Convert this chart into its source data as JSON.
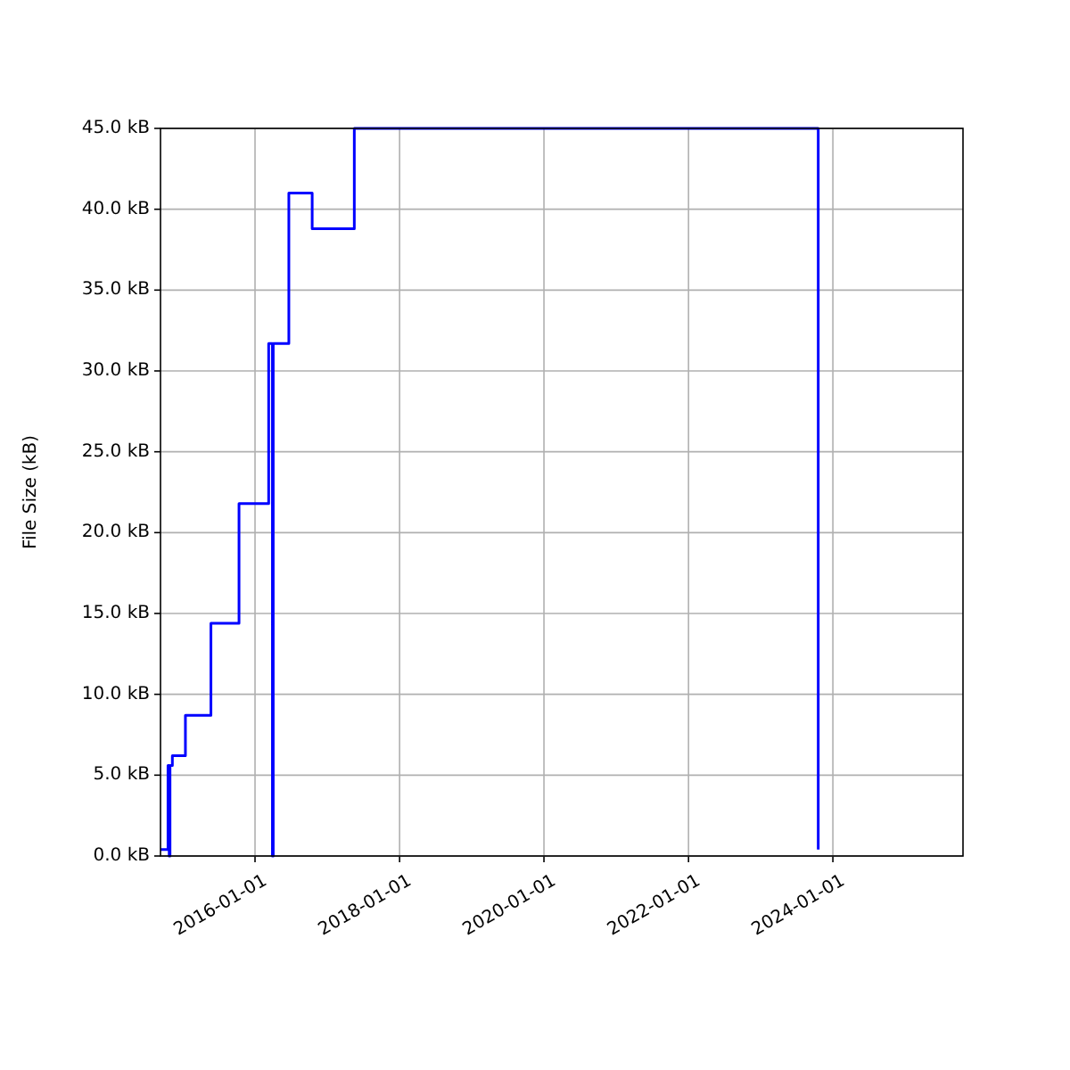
{
  "chart_data": {
    "type": "step",
    "ylabel": "File Size (kB)",
    "x": [
      "2014-09-10",
      "2014-10-18",
      "2014-10-24",
      "2014-10-28",
      "2014-11-09",
      "2015-01-14",
      "2015-05-23",
      "2015-10-12",
      "2016-03-10",
      "2016-03-29",
      "2016-04-02",
      "2016-06-20",
      "2016-10-16",
      "2017-05-17",
      "2023-10-19"
    ],
    "series": [
      {
        "color": "#0000ff",
        "values": [
          0.4,
          5.6,
          0,
          5.6,
          6.2,
          8.7,
          14.4,
          21.8,
          31.7,
          0,
          31.7,
          41.0,
          38.8,
          45,
          0.4
        ]
      }
    ],
    "xlim": [
      "2014-09-10",
      "2025-10-20"
    ],
    "xticks": [
      {
        "value": "2016-01-01",
        "label": "2016-01-01"
      },
      {
        "value": "2018-01-01",
        "label": "2018-01-01"
      },
      {
        "value": "2020-01-01",
        "label": "2020-01-01"
      },
      {
        "value": "2022-01-01",
        "label": "2022-01-01"
      },
      {
        "value": "2024-01-01",
        "label": "2024-01-01"
      }
    ],
    "ylim": [
      0,
      45
    ],
    "yticks": [
      {
        "value": 0,
        "label": "0.0 kB"
      },
      {
        "value": 5,
        "label": "5.0 kB"
      },
      {
        "value": 10,
        "label": "10.0 kB"
      },
      {
        "value": 15,
        "label": "15.0 kB"
      },
      {
        "value": 20,
        "label": "20.0 kB"
      },
      {
        "value": 25,
        "label": "25.0 kB"
      },
      {
        "value": 30,
        "label": "30.0 kB"
      },
      {
        "value": 35,
        "label": "35.0 kB"
      },
      {
        "value": 40,
        "label": "40.0 kB"
      },
      {
        "value": 45,
        "label": "45.0 kB"
      }
    ],
    "grid": true
  }
}
